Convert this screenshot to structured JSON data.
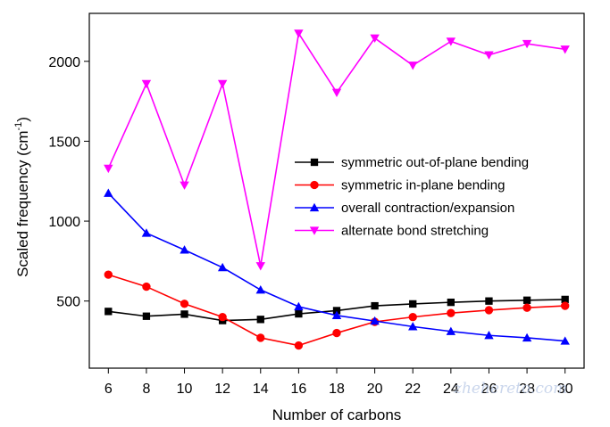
{
  "chart_data": {
    "type": "line",
    "xlabel": "Number of carbons",
    "ylabel_main": "Scaled frequency (cm",
    "ylabel_sup": "-1",
    "ylabel_close": ")",
    "xlim": [
      5,
      31
    ],
    "ylim": [
      80,
      2300
    ],
    "x_ticks": [
      6,
      8,
      10,
      12,
      14,
      16,
      18,
      20,
      22,
      24,
      26,
      28,
      30
    ],
    "y_ticks": [
      500,
      1000,
      1500,
      2000
    ],
    "x": [
      6,
      8,
      10,
      12,
      14,
      16,
      18,
      20,
      22,
      24,
      26,
      28,
      30
    ],
    "series": [
      {
        "name": "symmetric out-of-plane bending",
        "color": "#000000",
        "marker": "square",
        "values": [
          435,
          405,
          418,
          378,
          385,
          420,
          440,
          470,
          482,
          492,
          500,
          505,
          510
        ]
      },
      {
        "name": "symmetric in-plane bending",
        "color": "#ff0000",
        "marker": "circle",
        "values": [
          665,
          590,
          483,
          400,
          270,
          222,
          300,
          370,
          400,
          425,
          443,
          458,
          470
        ]
      },
      {
        "name": "overall contraction/expansion",
        "color": "#0000ff",
        "marker": "triangle-up",
        "values": [
          1175,
          925,
          820,
          710,
          570,
          465,
          410,
          375,
          340,
          310,
          285,
          270,
          250
        ]
      },
      {
        "name": "alternate bond stretching",
        "color": "#ff00ff",
        "marker": "triangle-down",
        "values": [
          1330,
          1860,
          1225,
          1860,
          720,
          2175,
          1805,
          2145,
          1975,
          2125,
          2040,
          2110,
          2075
        ]
      }
    ],
    "legend_position": "center-right",
    "grid": false
  },
  "watermark": "zhehereto.com"
}
